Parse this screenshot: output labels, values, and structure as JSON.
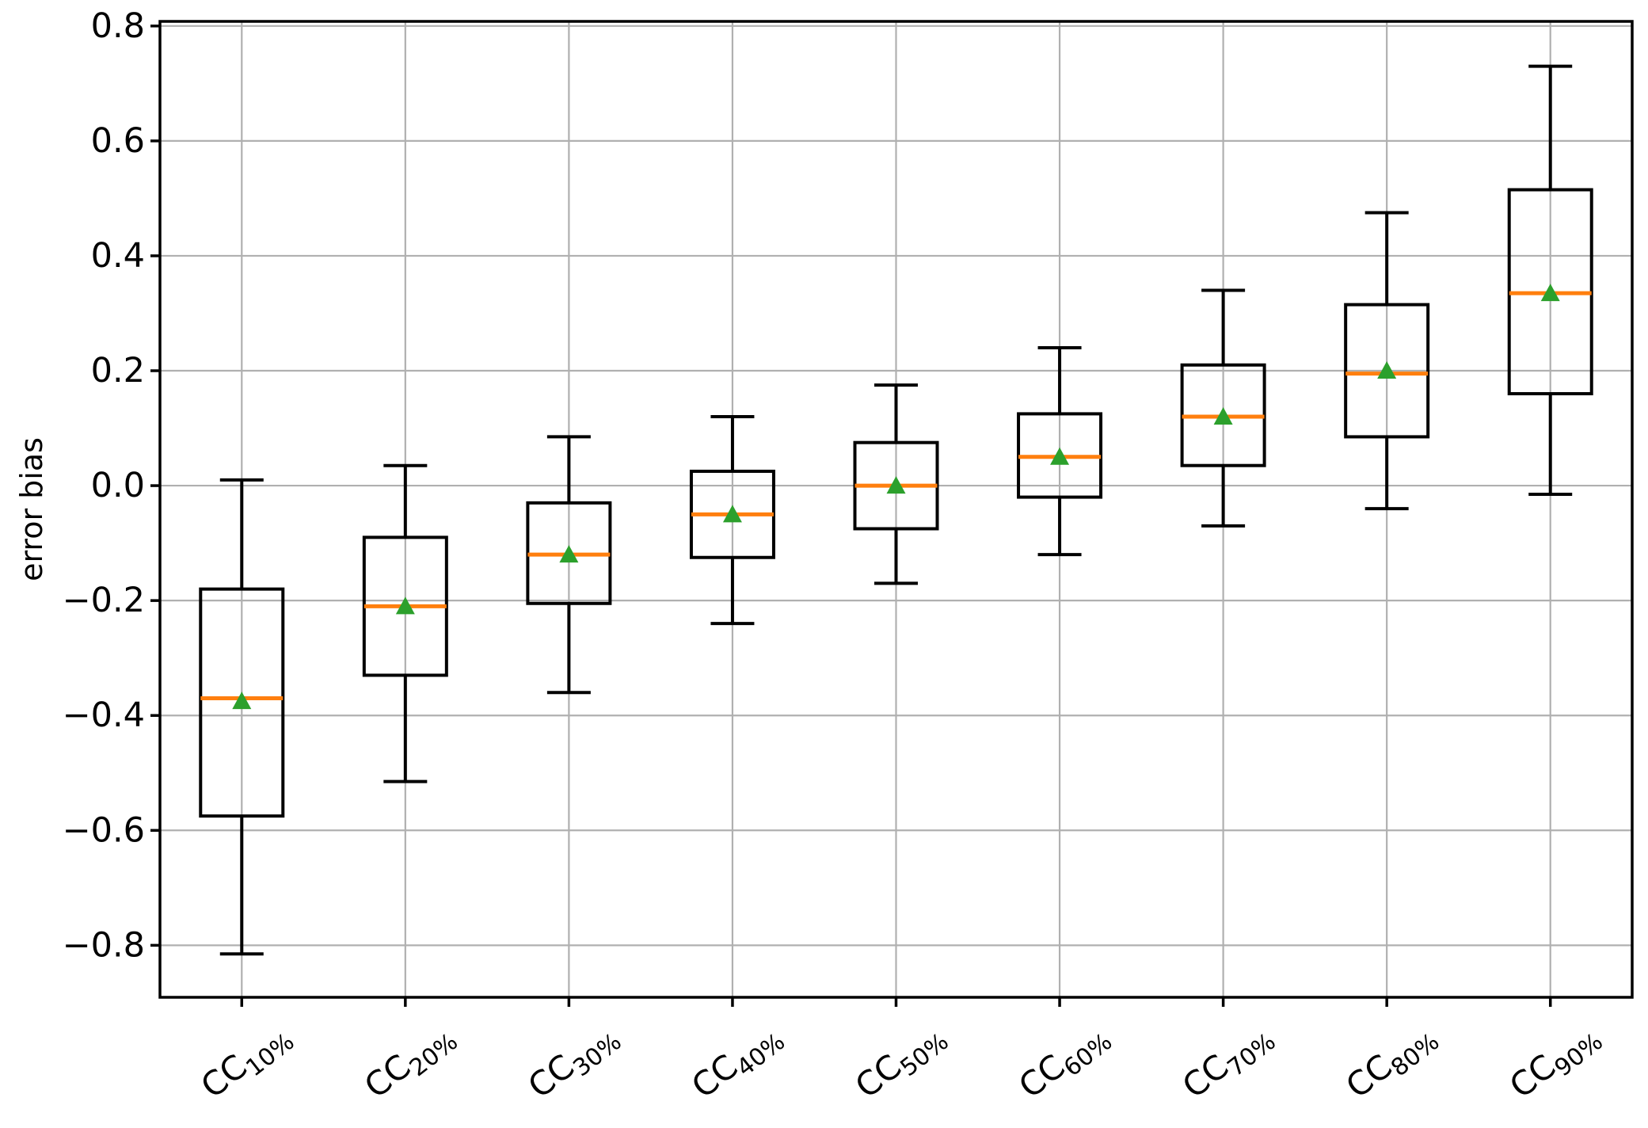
{
  "chart_data": {
    "type": "boxplot",
    "title": "",
    "ylabel": "error bias",
    "xlabel": "",
    "grid": true,
    "legend": "none",
    "ylim": [
      -0.8905,
      0.808
    ],
    "yticks": [
      0.8,
      0.6,
      0.4,
      0.2,
      0.0,
      -0.2,
      -0.4,
      -0.6,
      -0.8
    ],
    "categories": [
      {
        "base": "CC",
        "sub": "10%"
      },
      {
        "base": "CC",
        "sub": "20%"
      },
      {
        "base": "CC",
        "sub": "30%"
      },
      {
        "base": "CC",
        "sub": "40%"
      },
      {
        "base": "CC",
        "sub": "50%"
      },
      {
        "base": "CC",
        "sub": "60%"
      },
      {
        "base": "CC",
        "sub": "70%"
      },
      {
        "base": "CC",
        "sub": "80%"
      },
      {
        "base": "CC",
        "sub": "90%"
      }
    ],
    "series": [
      {
        "label": "CC10%",
        "whislo": -0.815,
        "q1": -0.575,
        "med": -0.37,
        "q3": -0.18,
        "whishi": 0.01,
        "mean": -0.375
      },
      {
        "label": "CC20%",
        "whislo": -0.515,
        "q1": -0.33,
        "med": -0.21,
        "q3": -0.09,
        "whishi": 0.035,
        "mean": -0.21
      },
      {
        "label": "CC30%",
        "whislo": -0.36,
        "q1": -0.205,
        "med": -0.12,
        "q3": -0.03,
        "whishi": 0.085,
        "mean": -0.12
      },
      {
        "label": "CC40%",
        "whislo": -0.24,
        "q1": -0.125,
        "med": -0.05,
        "q3": 0.025,
        "whishi": 0.12,
        "mean": -0.05
      },
      {
        "label": "CC50%",
        "whislo": -0.17,
        "q1": -0.075,
        "med": 0.0,
        "q3": 0.075,
        "whishi": 0.175,
        "mean": 0.0
      },
      {
        "label": "CC60%",
        "whislo": -0.12,
        "q1": -0.02,
        "med": 0.05,
        "q3": 0.125,
        "whishi": 0.24,
        "mean": 0.05
      },
      {
        "label": "CC70%",
        "whislo": -0.07,
        "q1": 0.035,
        "med": 0.12,
        "q3": 0.21,
        "whishi": 0.34,
        "mean": 0.12
      },
      {
        "label": "CC80%",
        "whislo": -0.04,
        "q1": 0.085,
        "med": 0.195,
        "q3": 0.315,
        "whishi": 0.475,
        "mean": 0.2
      },
      {
        "label": "CC90%",
        "whislo": -0.015,
        "q1": 0.16,
        "med": 0.335,
        "q3": 0.515,
        "whishi": 0.73,
        "mean": 0.335
      }
    ],
    "colors": {
      "box": "#000000",
      "whisker": "#000000",
      "median": "#ff7f0e",
      "mean_marker": "#2ca02c",
      "grid": "#b0b0b0",
      "spine": "#000000",
      "tick_label": "#000000",
      "background": "#ffffff"
    }
  }
}
